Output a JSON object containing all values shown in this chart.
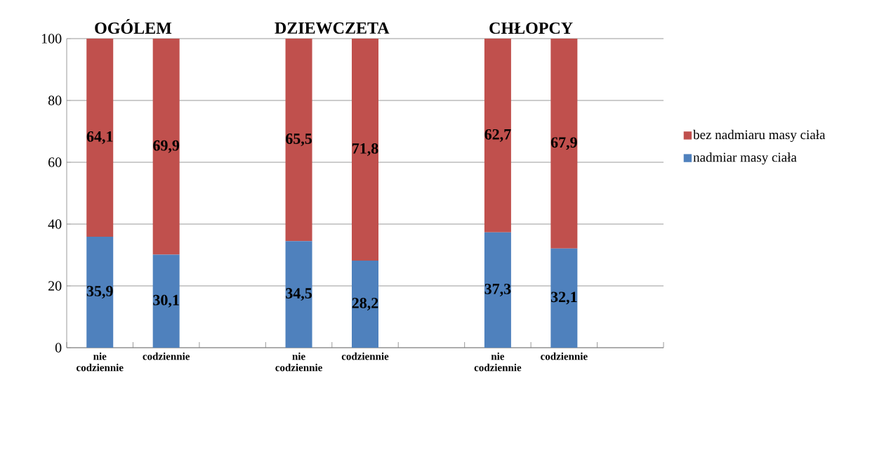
{
  "chart_data": {
    "type": "bar",
    "stacked": true,
    "categories": [
      "nie codziennie",
      "codziennie",
      null,
      "nie codziennie",
      "codziennie",
      null,
      "nie codziennie",
      "codziennie",
      null
    ],
    "series": [
      {
        "name": "nadmiar masy ciała",
        "color": "#4f81bd",
        "values": [
          35.9,
          30.1,
          null,
          34.5,
          28.2,
          null,
          37.3,
          32.1,
          null
        ],
        "value_labels": [
          "35,9",
          "30,1",
          null,
          "34,5",
          "28,2",
          null,
          "37,3",
          "32,1",
          null
        ]
      },
      {
        "name": "bez nadmiaru masy ciała",
        "color": "#c0504d",
        "values": [
          64.1,
          69.9,
          null,
          65.5,
          71.8,
          null,
          62.7,
          67.9,
          null
        ],
        "value_labels": [
          "64,1",
          "69,9",
          null,
          "65,5",
          "71,8",
          null,
          "62,7",
          "67,9",
          null
        ]
      }
    ],
    "annotations": [
      "OGÓLEM",
      "DZIEWCZETA",
      "CHŁOPCY"
    ],
    "ylim": [
      0,
      100
    ],
    "yticks": [
      0,
      20,
      40,
      60,
      80,
      100
    ],
    "grid": "y",
    "legend": "right"
  }
}
